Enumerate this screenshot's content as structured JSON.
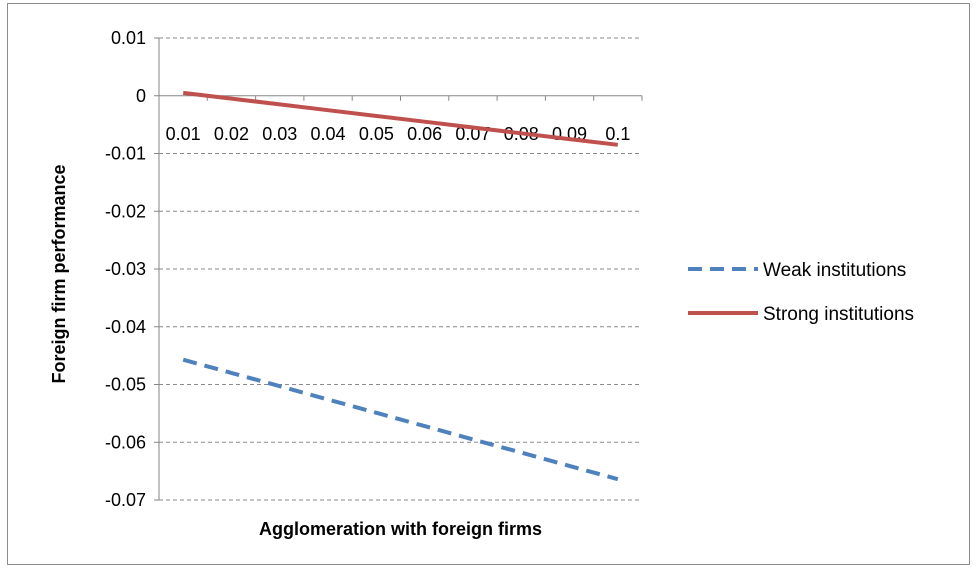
{
  "chart_data": {
    "type": "line",
    "title": "",
    "xlabel": "Agglomeration with foreign firms",
    "ylabel": "Foreign firm performance",
    "ylim": [
      -0.07,
      0.01
    ],
    "yticks": [
      0.01,
      0,
      -0.01,
      -0.02,
      -0.03,
      -0.04,
      -0.05,
      -0.06,
      -0.07
    ],
    "ytick_labels": [
      "0.01",
      "0",
      "-0.01",
      "-0.02",
      "-0.03",
      "-0.04",
      "-0.05",
      "-0.06",
      "-0.07"
    ],
    "categories": [
      "0.01",
      "0.02",
      "0.03",
      "0.04",
      "0.05",
      "0.06",
      "0.07",
      "0.08",
      "0.09",
      "0.1"
    ],
    "grid": true,
    "grid_style": "dashed",
    "legend_position": "right",
    "series": [
      {
        "name": "Weak institutions",
        "color": "#4f81bd",
        "style": "dashed",
        "values": [
          -0.0457,
          -0.048,
          -0.0503,
          -0.0526,
          -0.0549,
          -0.0572,
          -0.0595,
          -0.0618,
          -0.0641,
          -0.0664
        ]
      },
      {
        "name": "Strong institutions",
        "color": "#c0504d",
        "style": "solid",
        "values": [
          0.0005,
          -0.0005,
          -0.0015,
          -0.0025,
          -0.0035,
          -0.0045,
          -0.0055,
          -0.0065,
          -0.0075,
          -0.0085
        ]
      }
    ]
  }
}
